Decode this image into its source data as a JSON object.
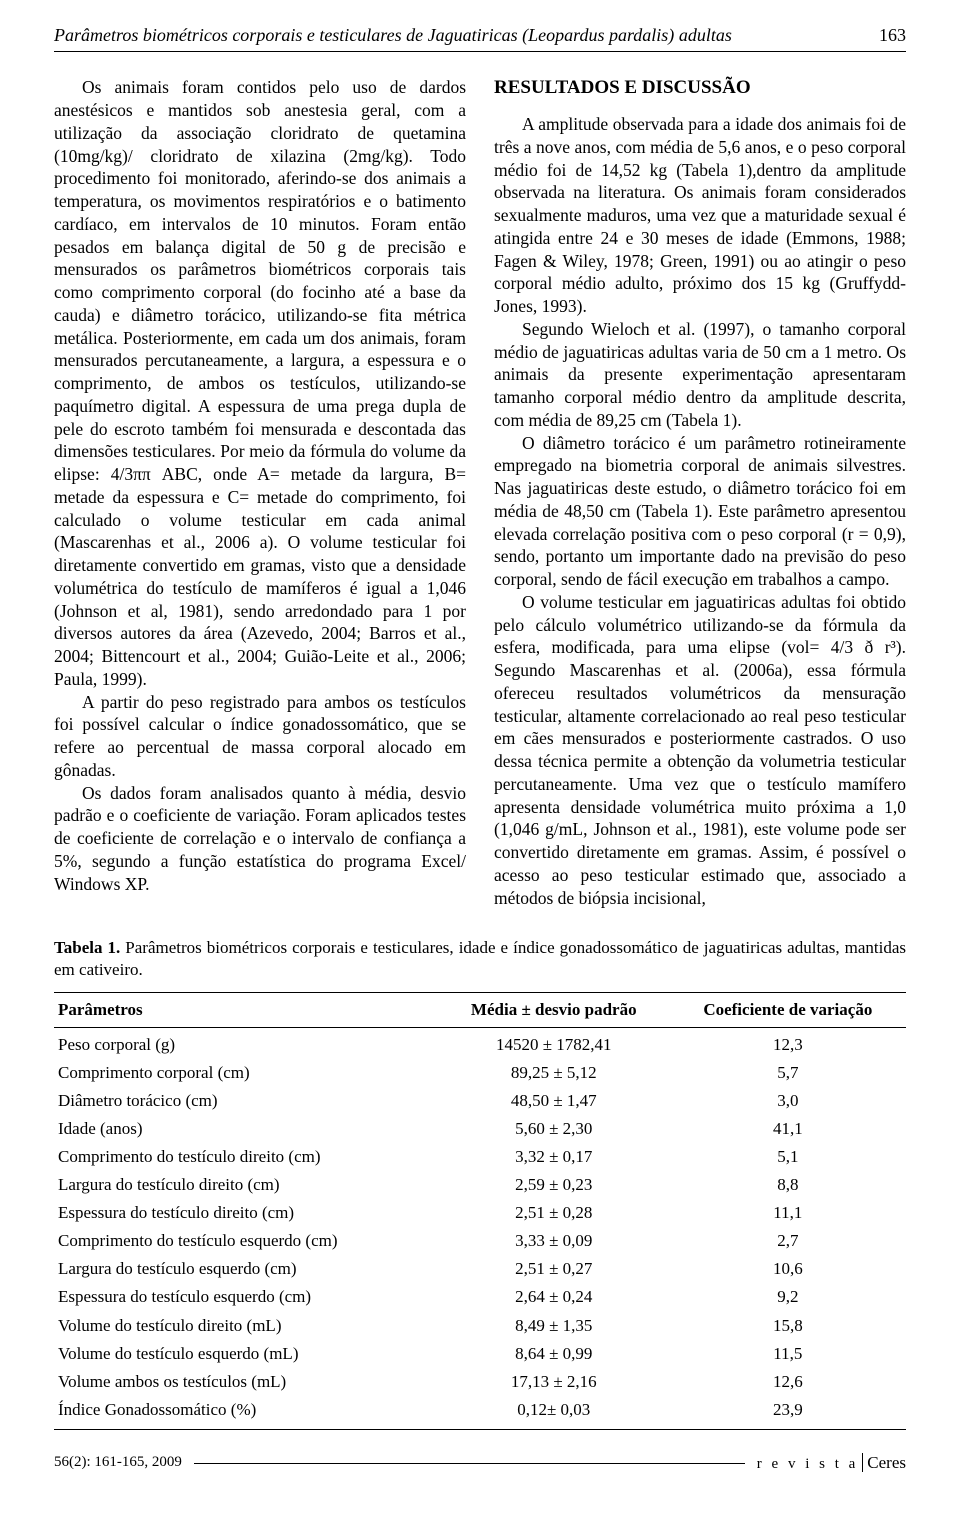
{
  "header": {
    "running_title_plain": "Parâmetros biométricos corporais e testiculares de Jaguatiricas ",
    "running_title_ital": "(Leopardus pardalis)",
    "running_title_tail": " adultas",
    "page_number": "163"
  },
  "left_column": {
    "p1": "Os animais foram contidos pelo uso de dardos anestésicos e mantidos sob anestesia geral, com a utilização da associação cloridrato de quetamina (10mg/kg)/ cloridrato de xilazina (2mg/kg). Todo procedimento foi monitorado, aferindo-se dos animais a temperatura, os movimentos respiratórios e o batimento cardíaco, em intervalos de 10 minutos. Foram então pesados em balança digital de 50 g de precisão e mensurados os parâmetros biométricos corporais tais como comprimento corporal (do focinho até a base da cauda) e diâmetro torácico, utilizando-se fita métrica metálica. Posteriormente, em cada um dos animais, foram mensurados percutaneamente, a largura, a espessura e o comprimento, de ambos os testículos, utilizando-se paquímetro digital. A espessura de uma prega dupla de pele do escroto também foi mensurada e descontada das dimensões testiculares. Por meio da fórmula do volume da elipse: 4/3ππ ABC, onde A= metade da largura, B= metade da espessura e C= metade do comprimento, foi calculado o volume testicular em cada animal (Mascarenhas et al., 2006 a). O volume testicular foi diretamente convertido em gramas, visto que a densidade volumétrica do testículo de mamíferos é igual a 1,046 (Johnson et al, 1981), sendo arredondado para 1 por diversos autores da área (Azevedo, 2004; Barros et al., 2004; Bittencourt et al., 2004; Guião-Leite et al., 2006; Paula, 1999).",
    "p2": "A partir do peso registrado para ambos os testículos foi possível calcular o índice gonadossomático, que se refere ao percentual de massa corporal alocado em gônadas.",
    "p3": "Os dados foram analisados quanto à média, desvio padrão e o coeficiente de variação. Foram aplicados testes de coeficiente de correlação e o intervalo de confiança a 5%, segundo a função estatística do programa Excel/ Windows XP."
  },
  "right_column": {
    "heading": "RESULTADOS E DISCUSSÃO",
    "p1": "A amplitude observada para a idade dos animais foi de três a nove anos, com média de 5,6 anos, e o peso corporal médio foi de 14,52 kg (Tabela 1),dentro da amplitude observada na literatura. Os animais foram considerados sexualmente maduros, uma vez que a maturidade sexual é atingida entre 24 e 30 meses de idade (Emmons, 1988; Fagen & Wiley, 1978; Green, 1991) ou ao atingir o peso corporal médio adulto, próximo dos 15 kg (Gruffydd-Jones, 1993).",
    "p2": "Segundo Wieloch et al. (1997), o tamanho corporal médio de jaguatiricas adultas varia de 50 cm a 1 metro. Os animais da presente experimentação apresentaram tamanho corporal médio dentro da amplitude descrita, com média de 89,25 cm (Tabela 1).",
    "p3": "O diâmetro torácico é um parâmetro rotineiramente empregado na biometria corporal de animais silvestres. Nas jaguatiricas deste estudo, o diâmetro torácico foi em média de 48,50 cm (Tabela 1). Este parâmetro apresentou elevada correlação positiva com o peso corporal (r = 0,9), sendo, portanto um importante dado na previsão do peso corporal, sendo de fácil execução em trabalhos a campo.",
    "p4": "O volume testicular em jaguatiricas adultas foi obtido pelo cálculo volumétrico utilizando-se da fórmula da esfera, modificada, para uma elipse (vol= 4/3 ð r³). Segundo Mascarenhas et al. (2006a), essa fórmula ofereceu resultados volumétricos da mensuração testicular, altamente correlacionado ao real peso testicular em cães mensurados e posteriormente castrados. O uso dessa técnica permite a obtenção da volumetria testicular percutaneamente. Uma vez que o testículo mamífero apresenta densidade volumétrica muito próxima a 1,0 (1,046 g/mL, Johnson et al., 1981), este volume pode ser convertido diretamente em gramas. Assim, é possível o acesso ao peso testicular estimado que, associado a métodos de biópsia incisional,"
  },
  "table": {
    "caption_label": "Tabela 1.",
    "caption_text": " Parâmetros biométricos corporais e testiculares, idade e índice gonadossomático de jaguatiricas adultas, mantidas em cativeiro.",
    "columns": [
      "Parâmetros",
      "Média ± desvio padrão",
      "Coeficiente de variação"
    ],
    "rows": [
      [
        "Peso corporal (g)",
        "14520 ± 1782,41",
        "12,3"
      ],
      [
        "Comprimento corporal (cm)",
        "89,25 ± 5,12",
        "5,7"
      ],
      [
        "Diâmetro torácico (cm)",
        "48,50 ± 1,47",
        "3,0"
      ],
      [
        "Idade (anos)",
        "5,60 ± 2,30",
        "41,1"
      ],
      [
        "Comprimento do testículo direito (cm)",
        "3,32 ± 0,17",
        "5,1"
      ],
      [
        "Largura do testículo direito (cm)",
        "2,59 ± 0,23",
        "8,8"
      ],
      [
        "Espessura do testículo direito (cm)",
        "2,51 ± 0,28",
        "11,1"
      ],
      [
        "Comprimento do testículo esquerdo (cm)",
        "3,33 ± 0,09",
        "2,7"
      ],
      [
        "Largura do testículo esquerdo (cm)",
        "2,51 ± 0,27",
        "10,6"
      ],
      [
        "Espessura do testículo esquerdo (cm)",
        "2,64 ± 0,24",
        "9,2"
      ],
      [
        "Volume do testículo direito (mL)",
        "8,49 ± 1,35",
        "15,8"
      ],
      [
        "Volume do testículo esquerdo (mL)",
        "8,64 ± 0,99",
        "11,5"
      ],
      [
        "Volume ambos os testículos (mL)",
        "17,13 ± 2,16",
        "12,6"
      ],
      [
        "Índice Gonadossomático (%)",
        "0,12± 0,03",
        "23,9"
      ]
    ]
  },
  "footer": {
    "left": "56(2): 161-165, 2009",
    "right_spaced": "r e v i s t a",
    "right_brand": "Ceres"
  }
}
